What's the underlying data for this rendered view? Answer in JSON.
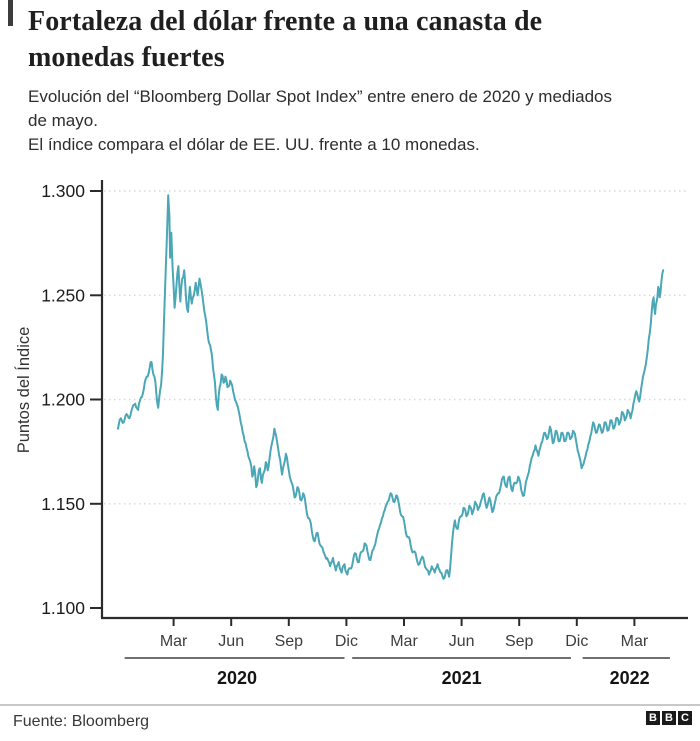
{
  "header": {
    "title": "Fortaleza del dólar frente a una canasta de monedas fuertes",
    "subtitle_line1": "Evolución del “Bloomberg Dollar Spot Index” entre enero de 2020 y mediados de mayo.",
    "subtitle_line2": "El índice compara el dólar de EE. UU. frente a 10 monedas."
  },
  "chart_data": {
    "type": "line",
    "title": "Fortaleza del dólar frente a una canasta de monedas fuertes",
    "series_name": "Bloomberg Dollar Spot Index",
    "xlabel": "",
    "ylabel": "Puntos del Índice",
    "x_range_label": "enero de 2020 a mediados de mayo de 2022",
    "x_unit": "meses desde enero de 2020",
    "ylim": [
      1.1,
      1.3
    ],
    "grid": "dotted horizontal",
    "legend": "none",
    "line_color": "#4ba7b6",
    "axis_color": "#2b2b2b",
    "grid_color": "#d8d8d8",
    "ytick_values": [
      1.3,
      1.25,
      1.2,
      1.15,
      1.1
    ],
    "ytick_labels": [
      "1.300",
      "1.250",
      "1.200",
      "1.150",
      "1.100"
    ],
    "month_tick_positions": [
      3,
      6,
      9,
      12,
      15,
      18,
      21,
      24,
      27
    ],
    "month_tick_labels": [
      "Mar",
      "Jun",
      "Sep",
      "Dic",
      "Mar",
      "Jun",
      "Sep",
      "Dic",
      "Mar"
    ],
    "year_groups": [
      {
        "label": "2020",
        "start_month": 0.45,
        "end_month": 11.9,
        "label_month": 6.3
      },
      {
        "label": "2021",
        "start_month": 12.3,
        "end_month": 23.7,
        "label_month": 18.0
      },
      {
        "label": "2022",
        "start_month": 24.3,
        "end_month": 28.85,
        "label_month": 26.75
      }
    ],
    "points": [
      [
        0.1,
        1.186
      ],
      [
        0.25,
        1.191
      ],
      [
        0.4,
        1.189
      ],
      [
        0.55,
        1.193
      ],
      [
        0.7,
        1.191
      ],
      [
        0.85,
        1.196
      ],
      [
        1.0,
        1.198
      ],
      [
        1.15,
        1.195
      ],
      [
        1.3,
        1.201
      ],
      [
        1.45,
        1.205
      ],
      [
        1.6,
        1.211
      ],
      [
        1.75,
        1.215
      ],
      [
        1.85,
        1.218
      ],
      [
        2.0,
        1.211
      ],
      [
        2.1,
        1.203
      ],
      [
        2.2,
        1.196
      ],
      [
        2.35,
        1.207
      ],
      [
        2.45,
        1.222
      ],
      [
        2.55,
        1.252
      ],
      [
        2.65,
        1.278
      ],
      [
        2.72,
        1.298
      ],
      [
        2.78,
        1.288
      ],
      [
        2.82,
        1.268
      ],
      [
        2.88,
        1.28
      ],
      [
        2.95,
        1.263
      ],
      [
        3.05,
        1.244
      ],
      [
        3.15,
        1.255
      ],
      [
        3.25,
        1.264
      ],
      [
        3.35,
        1.247
      ],
      [
        3.45,
        1.258
      ],
      [
        3.55,
        1.262
      ],
      [
        3.65,
        1.248
      ],
      [
        3.75,
        1.242
      ],
      [
        3.85,
        1.254
      ],
      [
        3.95,
        1.246
      ],
      [
        4.05,
        1.25
      ],
      [
        4.15,
        1.256
      ],
      [
        4.25,
        1.25
      ],
      [
        4.35,
        1.258
      ],
      [
        4.45,
        1.253
      ],
      [
        4.55,
        1.246
      ],
      [
        4.65,
        1.24
      ],
      [
        4.75,
        1.233
      ],
      [
        4.85,
        1.227
      ],
      [
        5.0,
        1.221
      ],
      [
        5.1,
        1.212
      ],
      [
        5.2,
        1.202
      ],
      [
        5.3,
        1.195
      ],
      [
        5.4,
        1.206
      ],
      [
        5.5,
        1.212
      ],
      [
        5.6,
        1.208
      ],
      [
        5.7,
        1.211
      ],
      [
        5.8,
        1.206
      ],
      [
        5.95,
        1.209
      ],
      [
        6.1,
        1.204
      ],
      [
        6.25,
        1.199
      ],
      [
        6.4,
        1.194
      ],
      [
        6.55,
        1.187
      ],
      [
        6.7,
        1.18
      ],
      [
        6.85,
        1.175
      ],
      [
        7.0,
        1.17
      ],
      [
        7.1,
        1.163
      ],
      [
        7.2,
        1.168
      ],
      [
        7.3,
        1.158
      ],
      [
        7.4,
        1.163
      ],
      [
        7.5,
        1.167
      ],
      [
        7.6,
        1.16
      ],
      [
        7.7,
        1.165
      ],
      [
        7.8,
        1.17
      ],
      [
        7.9,
        1.166
      ],
      [
        8.0,
        1.172
      ],
      [
        8.1,
        1.178
      ],
      [
        8.25,
        1.186
      ],
      [
        8.4,
        1.179
      ],
      [
        8.55,
        1.171
      ],
      [
        8.65,
        1.164
      ],
      [
        8.75,
        1.169
      ],
      [
        8.85,
        1.174
      ],
      [
        9.0,
        1.166
      ],
      [
        9.15,
        1.16
      ],
      [
        9.3,
        1.153
      ],
      [
        9.45,
        1.158
      ],
      [
        9.6,
        1.152
      ],
      [
        9.75,
        1.155
      ],
      [
        9.9,
        1.148
      ],
      [
        10.05,
        1.143
      ],
      [
        10.2,
        1.137
      ],
      [
        10.35,
        1.132
      ],
      [
        10.5,
        1.136
      ],
      [
        10.65,
        1.13
      ],
      [
        10.8,
        1.127
      ],
      [
        11.0,
        1.124
      ],
      [
        11.15,
        1.12
      ],
      [
        11.3,
        1.124
      ],
      [
        11.45,
        1.118
      ],
      [
        11.6,
        1.122
      ],
      [
        11.75,
        1.117
      ],
      [
        11.9,
        1.121
      ],
      [
        12.05,
        1.116
      ],
      [
        12.2,
        1.119
      ],
      [
        12.35,
        1.123
      ],
      [
        12.5,
        1.126
      ],
      [
        12.65,
        1.122
      ],
      [
        12.8,
        1.127
      ],
      [
        12.95,
        1.131
      ],
      [
        13.1,
        1.127
      ],
      [
        13.25,
        1.123
      ],
      [
        13.4,
        1.128
      ],
      [
        13.55,
        1.133
      ],
      [
        13.7,
        1.138
      ],
      [
        13.85,
        1.143
      ],
      [
        14.0,
        1.147
      ],
      [
        14.15,
        1.151
      ],
      [
        14.3,
        1.155
      ],
      [
        14.45,
        1.151
      ],
      [
        14.6,
        1.154
      ],
      [
        14.75,
        1.149
      ],
      [
        14.9,
        1.144
      ],
      [
        15.05,
        1.139
      ],
      [
        15.2,
        1.134
      ],
      [
        15.35,
        1.13
      ],
      [
        15.5,
        1.127
      ],
      [
        15.65,
        1.124
      ],
      [
        15.8,
        1.121
      ],
      [
        16.0,
        1.124
      ],
      [
        16.15,
        1.119
      ],
      [
        16.3,
        1.116
      ],
      [
        16.45,
        1.12
      ],
      [
        16.6,
        1.117
      ],
      [
        16.75,
        1.121
      ],
      [
        16.9,
        1.117
      ],
      [
        17.05,
        1.114
      ],
      [
        17.2,
        1.118
      ],
      [
        17.35,
        1.115
      ],
      [
        17.5,
        1.131
      ],
      [
        17.65,
        1.142
      ],
      [
        17.8,
        1.138
      ],
      [
        17.95,
        1.144
      ],
      [
        18.1,
        1.148
      ],
      [
        18.25,
        1.144
      ],
      [
        18.4,
        1.149
      ],
      [
        18.55,
        1.145
      ],
      [
        18.7,
        1.151
      ],
      [
        18.85,
        1.147
      ],
      [
        19.0,
        1.151
      ],
      [
        19.15,
        1.155
      ],
      [
        19.3,
        1.148
      ],
      [
        19.45,
        1.153
      ],
      [
        19.6,
        1.146
      ],
      [
        19.75,
        1.151
      ],
      [
        19.9,
        1.155
      ],
      [
        20.05,
        1.159
      ],
      [
        20.2,
        1.163
      ],
      [
        20.35,
        1.158
      ],
      [
        20.5,
        1.163
      ],
      [
        20.65,
        1.156
      ],
      [
        20.8,
        1.16
      ],
      [
        20.95,
        1.163
      ],
      [
        21.1,
        1.157
      ],
      [
        21.25,
        1.154
      ],
      [
        21.4,
        1.162
      ],
      [
        21.55,
        1.168
      ],
      [
        21.7,
        1.173
      ],
      [
        21.85,
        1.178
      ],
      [
        22.0,
        1.173
      ],
      [
        22.15,
        1.179
      ],
      [
        22.3,
        1.184
      ],
      [
        22.45,
        1.181
      ],
      [
        22.6,
        1.187
      ],
      [
        22.75,
        1.179
      ],
      [
        22.9,
        1.185
      ],
      [
        23.05,
        1.18
      ],
      [
        23.2,
        1.184
      ],
      [
        23.35,
        1.18
      ],
      [
        23.5,
        1.184
      ],
      [
        23.65,
        1.181
      ],
      [
        23.8,
        1.185
      ],
      [
        23.95,
        1.181
      ],
      [
        24.1,
        1.174
      ],
      [
        24.25,
        1.167
      ],
      [
        24.4,
        1.171
      ],
      [
        24.55,
        1.176
      ],
      [
        24.7,
        1.182
      ],
      [
        24.85,
        1.189
      ],
      [
        25.0,
        1.184
      ],
      [
        25.15,
        1.188
      ],
      [
        25.3,
        1.184
      ],
      [
        25.45,
        1.189
      ],
      [
        25.6,
        1.185
      ],
      [
        25.75,
        1.19
      ],
      [
        25.9,
        1.186
      ],
      [
        26.05,
        1.191
      ],
      [
        26.2,
        1.188
      ],
      [
        26.35,
        1.194
      ],
      [
        26.5,
        1.19
      ],
      [
        26.65,
        1.195
      ],
      [
        26.8,
        1.191
      ],
      [
        26.95,
        1.198
      ],
      [
        27.1,
        1.204
      ],
      [
        27.25,
        1.199
      ],
      [
        27.4,
        1.208
      ],
      [
        27.55,
        1.215
      ],
      [
        27.7,
        1.224
      ],
      [
        27.8,
        1.232
      ],
      [
        27.9,
        1.242
      ],
      [
        28.0,
        1.249
      ],
      [
        28.08,
        1.241
      ],
      [
        28.16,
        1.247
      ],
      [
        28.24,
        1.254
      ],
      [
        28.32,
        1.249
      ],
      [
        28.4,
        1.256
      ],
      [
        28.5,
        1.262
      ]
    ]
  },
  "footer": {
    "source": "Fuente: Bloomberg",
    "logo_letters": [
      "B",
      "B",
      "C"
    ]
  }
}
